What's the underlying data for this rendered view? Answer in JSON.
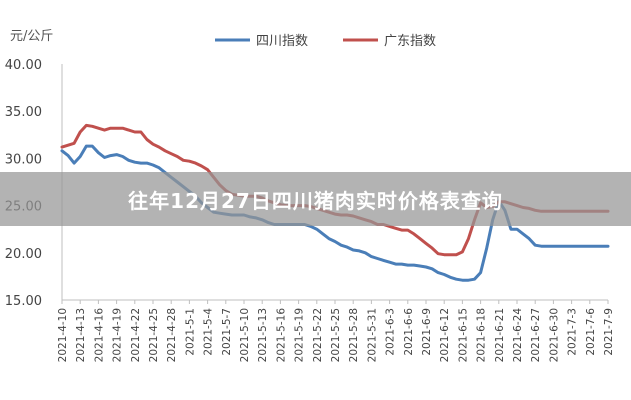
{
  "chart_data": {
    "type": "line",
    "y_unit_label": "元/公斤",
    "ylim": [
      15,
      40
    ],
    "y_ticks": [
      "15.00",
      "20.00",
      "25.00",
      "30.00",
      "35.00",
      "40.00"
    ],
    "grid": false,
    "legend_position": "top-center",
    "categories": [
      "2021-4-10",
      "2021-4-11",
      "2021-4-12",
      "2021-4-13",
      "2021-4-14",
      "2021-4-15",
      "2021-4-16",
      "2021-4-17",
      "2021-4-18",
      "2021-4-19",
      "2021-4-20",
      "2021-4-21",
      "2021-4-22",
      "2021-4-23",
      "2021-4-24",
      "2021-4-25",
      "2021-4-26",
      "2021-4-27",
      "2021-4-28",
      "2021-4-29",
      "2021-4-30",
      "2021-5-1",
      "2021-5-2",
      "2021-5-3",
      "2021-5-4",
      "2021-5-5",
      "2021-5-6",
      "2021-5-7",
      "2021-5-8",
      "2021-5-9",
      "2021-5-10",
      "2021-5-11",
      "2021-5-12",
      "2021-5-13",
      "2021-5-14",
      "2021-5-15",
      "2021-5-16",
      "2021-5-17",
      "2021-5-18",
      "2021-5-19",
      "2021-5-20",
      "2021-5-21",
      "2021-5-22",
      "2021-5-23",
      "2021-5-24",
      "2021-5-25",
      "2021-5-26",
      "2021-5-27",
      "2021-5-28",
      "2021-5-29",
      "2021-5-30",
      "2021-5-31",
      "2021-6-1",
      "2021-6-2",
      "2021-6-3",
      "2021-6-4",
      "2021-6-5",
      "2021-6-6",
      "2021-6-7",
      "2021-6-8",
      "2021-6-9",
      "2021-6-10",
      "2021-6-11",
      "2021-6-12",
      "2021-6-13",
      "2021-6-14",
      "2021-6-15",
      "2021-6-16",
      "2021-6-17",
      "2021-6-18",
      "2021-6-19",
      "2021-6-20",
      "2021-6-21",
      "2021-6-22",
      "2021-6-23",
      "2021-6-24",
      "2021-6-25",
      "2021-6-26",
      "2021-6-27",
      "2021-6-28",
      "2021-6-29",
      "2021-6-30",
      "2021-7-1",
      "2021-7-2",
      "2021-7-3",
      "2021-7-4",
      "2021-7-5",
      "2021-7-6",
      "2021-7-7",
      "2021-7-8",
      "2021-7-9"
    ],
    "tick_labels": [
      "2021-4-10",
      "2021-4-13",
      "2021-4-16",
      "2021-4-19",
      "2021-4-22",
      "2021-4-25",
      "2021-4-28",
      "2021-5-1",
      "2021-5-4",
      "2021-5-7",
      "2021-5-10",
      "2021-5-13",
      "2021-5-16",
      "2021-5-19",
      "2021-5-22",
      "2021-5-25",
      "2021-5-28",
      "2021-5-31",
      "2021-6-3",
      "2021-6-6",
      "2021-6-9",
      "2021-6-12",
      "2021-6-15",
      "2021-6-18",
      "2021-6-21",
      "2021-6-24",
      "2021-6-27",
      "2021-6-30",
      "2021-7-3",
      "2021-7-6",
      "2021-7-9"
    ],
    "series": [
      {
        "name": "四川指数",
        "color": "#4a7eb8",
        "values": [
          30.8,
          30.3,
          29.5,
          30.2,
          31.3,
          31.3,
          30.6,
          30.1,
          30.3,
          30.4,
          30.2,
          29.8,
          29.6,
          29.5,
          29.5,
          29.3,
          29.0,
          28.5,
          28.0,
          27.5,
          27.0,
          26.5,
          26.0,
          25.3,
          24.8,
          24.3,
          24.2,
          24.1,
          24.0,
          24.0,
          24.0,
          23.8,
          23.7,
          23.5,
          23.2,
          23.0,
          23.0,
          23.0,
          23.0,
          23.0,
          23.0,
          22.8,
          22.5,
          22.0,
          21.5,
          21.2,
          20.8,
          20.6,
          20.3,
          20.2,
          20.0,
          19.6,
          19.4,
          19.2,
          19.0,
          18.8,
          18.8,
          18.7,
          18.7,
          18.6,
          18.5,
          18.3,
          17.9,
          17.7,
          17.4,
          17.2,
          17.1,
          17.1,
          17.2,
          17.9,
          20.5,
          23.5,
          25.5,
          24.5,
          22.5,
          22.5,
          22.0,
          21.5,
          20.8,
          20.7,
          20.7,
          20.7,
          20.7,
          20.7,
          20.7,
          20.7,
          20.7,
          20.7,
          20.7,
          20.7,
          20.7
        ]
      },
      {
        "name": "广东指数",
        "color": "#c0504d",
        "values": [
          31.2,
          31.4,
          31.6,
          32.8,
          33.5,
          33.4,
          33.2,
          33.0,
          33.2,
          33.2,
          33.2,
          33.0,
          32.8,
          32.8,
          32.0,
          31.5,
          31.2,
          30.8,
          30.5,
          30.2,
          29.8,
          29.7,
          29.5,
          29.2,
          28.8,
          28.0,
          27.2,
          26.6,
          26.2,
          26.1,
          26.0,
          26.0,
          26.0,
          25.8,
          25.5,
          25.3,
          25.1,
          25.0,
          25.0,
          25.0,
          25.0,
          24.9,
          24.7,
          24.5,
          24.3,
          24.1,
          24.0,
          24.0,
          23.9,
          23.7,
          23.5,
          23.3,
          23.0,
          23.0,
          22.8,
          22.6,
          22.4,
          22.4,
          22.0,
          21.5,
          21.0,
          20.5,
          19.9,
          19.8,
          19.8,
          19.8,
          20.1,
          21.5,
          23.5,
          25.3,
          24.8,
          24.9,
          25.4,
          25.4,
          25.2,
          25.0,
          24.8,
          24.7,
          24.5,
          24.4,
          24.4,
          24.4,
          24.4,
          24.4,
          24.4,
          24.4,
          24.4,
          24.4,
          24.4,
          24.4,
          24.4
        ]
      }
    ]
  },
  "banner": {
    "title": "往年12月27日四川猪肉实时价格表查询"
  }
}
